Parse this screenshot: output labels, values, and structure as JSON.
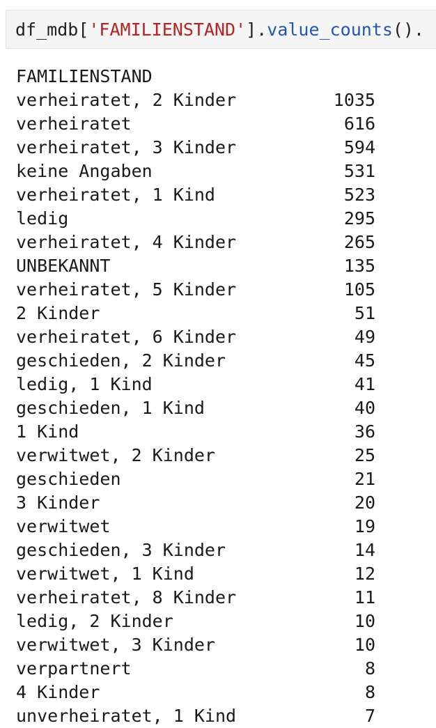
{
  "cell": {
    "code_var": "df_mdb",
    "code_open": "[",
    "code_string": "'FAMILIENSTAND'",
    "code_close": "]",
    "code_dot": ".",
    "code_method": "value_counts",
    "code_tail": "()."
  },
  "output": {
    "header": "FAMILIENSTAND",
    "rows": [
      {
        "label": "verheiratet, 2 Kinder",
        "count": "1035"
      },
      {
        "label": "verheiratet",
        "count": "616"
      },
      {
        "label": "verheiratet, 3 Kinder",
        "count": "594"
      },
      {
        "label": "keine Angaben",
        "count": "531"
      },
      {
        "label": "verheiratet, 1 Kind",
        "count": "523"
      },
      {
        "label": "ledig",
        "count": "295"
      },
      {
        "label": "verheiratet, 4 Kinder",
        "count": "265"
      },
      {
        "label": "UNBEKANNT",
        "count": "135"
      },
      {
        "label": "verheiratet, 5 Kinder",
        "count": "105"
      },
      {
        "label": "2 Kinder",
        "count": "51"
      },
      {
        "label": "verheiratet, 6 Kinder",
        "count": "49"
      },
      {
        "label": "geschieden, 2 Kinder",
        "count": "45"
      },
      {
        "label": "ledig, 1 Kind",
        "count": "41"
      },
      {
        "label": "geschieden, 1 Kind",
        "count": "40"
      },
      {
        "label": "1 Kind",
        "count": "36"
      },
      {
        "label": "verwitwet, 2 Kinder",
        "count": "25"
      },
      {
        "label": "geschieden",
        "count": "21"
      },
      {
        "label": "3 Kinder",
        "count": "20"
      },
      {
        "label": "verwitwet",
        "count": "19"
      },
      {
        "label": "geschieden, 3 Kinder",
        "count": "14"
      },
      {
        "label": "verwitwet, 1 Kind",
        "count": "12"
      },
      {
        "label": "verheiratet, 8 Kinder",
        "count": "11"
      },
      {
        "label": "ledig, 2 Kinder",
        "count": "10"
      },
      {
        "label": "verwitwet, 3 Kinder",
        "count": "10"
      },
      {
        "label": "verpartnert",
        "count": "8"
      },
      {
        "label": "4 Kinder",
        "count": "8"
      },
      {
        "label": "unverheiratet, 1 Kind",
        "count": "7"
      }
    ]
  }
}
